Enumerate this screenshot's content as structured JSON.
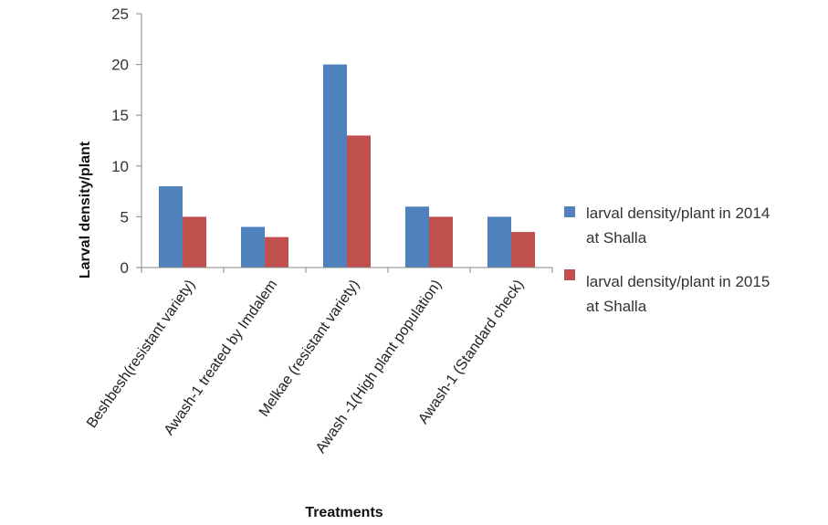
{
  "chart_data": {
    "type": "bar",
    "categories": [
      "Beshbesh(resistant variety)",
      "Awash-1 treated by Imdalem",
      "Melkae (resistant variety)",
      "Awash -1(High plant population)",
      "Awash-1 (Standard check)"
    ],
    "series": [
      {
        "name_line1": "larval density/plant in 2014",
        "name_line2": "at Shalla",
        "color": "#4f81bd",
        "values": [
          8,
          4,
          20,
          6,
          5
        ]
      },
      {
        "name_line1": "larval density/plant in 2015",
        "name_line2": "at Shalla",
        "color": "#c0504d",
        "values": [
          5,
          3,
          13,
          5,
          3.5
        ]
      }
    ],
    "xlabel": "Treatments",
    "ylabel": "Larval density/plant",
    "ylim": [
      0,
      25
    ],
    "yticks": [
      0,
      5,
      10,
      15,
      20,
      25
    ],
    "grid": false,
    "legend_position": "right"
  }
}
